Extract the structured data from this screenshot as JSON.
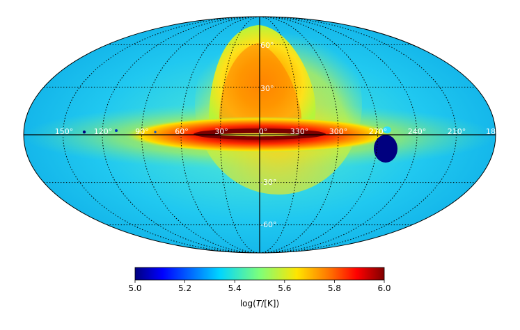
{
  "chart_data": {
    "type": "heatmap",
    "projection": "mollweide",
    "coordinate_system": "galactic",
    "grid": true,
    "longitude_labels": [
      "150°",
      "120°",
      "90°",
      "60°",
      "30°",
      "0°",
      "330°",
      "300°",
      "270°",
      "240°",
      "210°",
      "18"
    ],
    "latitude_labels": [
      "60°",
      "30°",
      "-30°",
      "-60°"
    ],
    "colorbar": {
      "colormap": "jet",
      "range": [
        5.0,
        6.0
      ],
      "ticks": [
        "5.0",
        "5.2",
        "5.4",
        "5.6",
        "5.8",
        "6.0"
      ],
      "label_prefix": "log(",
      "label_var": "T",
      "label_suffix": "/[K])"
    },
    "colors": {
      "background_field": "#17c3f0",
      "disk_core": "#7a0000",
      "cold_clump": "#00007f"
    }
  }
}
